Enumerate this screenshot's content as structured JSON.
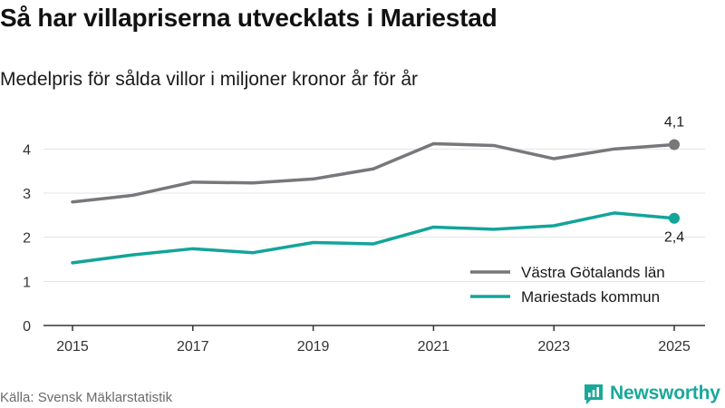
{
  "header": {
    "title": "Så har villapriserna utvecklats i Mariestad",
    "subtitle": "Medelpris för sålda villor i miljoner kronor år för år"
  },
  "footer": {
    "source": "Källa: Svensk Mäklarstatistik",
    "brand": "Newsworthy"
  },
  "colors": {
    "vastra": "#77777c",
    "mariestad": "#13a49a",
    "grid": "#e3e3e3",
    "axis": "#333333",
    "brand": "#1aa89a"
  },
  "chart_data": {
    "type": "line",
    "title": "Så har villapriserna utvecklats i Mariestad",
    "subtitle": "Medelpris för sålda villor i miljoner kronor år för år",
    "xlabel": "",
    "ylabel": "",
    "x": [
      2015,
      2016,
      2017,
      2018,
      2019,
      2020,
      2021,
      2022,
      2023,
      2024,
      2025
    ],
    "x_tick_labels": [
      "2015",
      "2017",
      "2019",
      "2021",
      "2023",
      "2025"
    ],
    "y_tick_labels": [
      "0",
      "1",
      "2",
      "3",
      "4"
    ],
    "ylim": [
      0,
      4.5
    ],
    "grid": "horizontal",
    "legend_position": "bottom-right",
    "series": [
      {
        "name": "Västra Götalands län",
        "color": "#77777c",
        "values": [
          2.8,
          2.95,
          3.25,
          3.23,
          3.32,
          3.55,
          4.12,
          4.08,
          3.78,
          4.0,
          4.1
        ],
        "end_label": "4,1"
      },
      {
        "name": "Mariestads kommun",
        "color": "#13a49a",
        "values": [
          1.42,
          1.6,
          1.74,
          1.65,
          1.88,
          1.85,
          2.23,
          2.18,
          2.26,
          2.55,
          2.43
        ],
        "end_label": "2,4"
      }
    ]
  }
}
